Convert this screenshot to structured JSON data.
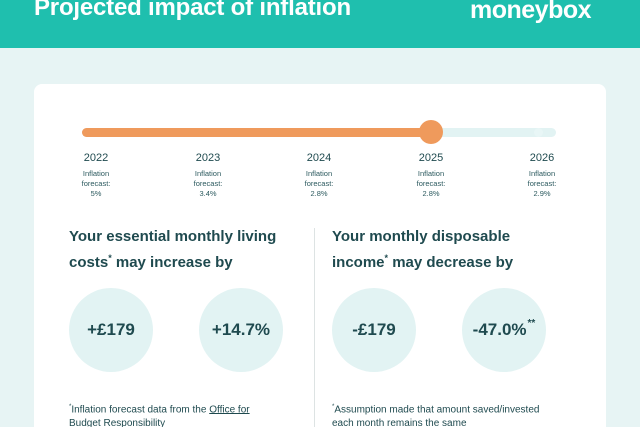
{
  "header": {
    "title": "Projected impact of inflation",
    "brand": "moneybox"
  },
  "timeline": {
    "forecast_label_line1": "Inflation",
    "forecast_label_line2": "forecast:",
    "progress_fraction": 0.74,
    "current_year": "2025",
    "years": [
      {
        "year": "2022",
        "value": "5%"
      },
      {
        "year": "2023",
        "value": "3.4%"
      },
      {
        "year": "2024",
        "value": "2.8%"
      },
      {
        "year": "2025",
        "value": "2.8%"
      },
      {
        "year": "2026",
        "value": "2.9%"
      }
    ]
  },
  "left": {
    "heading_line1": "Your essential monthly living",
    "heading_line2a": "costs",
    "heading_line2b": " may increase by",
    "heading_mark": "*",
    "stat1": "+£179",
    "stat2": "+14.7%",
    "footnote_mark": "*",
    "footnote_text": "Inflation forecast data from the ",
    "footnote_link_1": "Office for",
    "footnote_link_2": "Budget Responsibility"
  },
  "right": {
    "heading_line1": "Your monthly disposable",
    "heading_line2a": "income",
    "heading_line2b": " may decrease by",
    "heading_mark": "*",
    "stat1": "-£179",
    "stat2": "-47.0%",
    "stat2_mark": "**",
    "footnote_mark": "*",
    "footnote_line1": "Assumption made that amount saved/invested",
    "footnote_line2": "each month remains the same"
  },
  "colors": {
    "header_bg": "#1fbfae",
    "accent_orange": "#ef9a5c",
    "circle_bg": "#e2f3f3",
    "text_dark": "#1f4a4f"
  }
}
